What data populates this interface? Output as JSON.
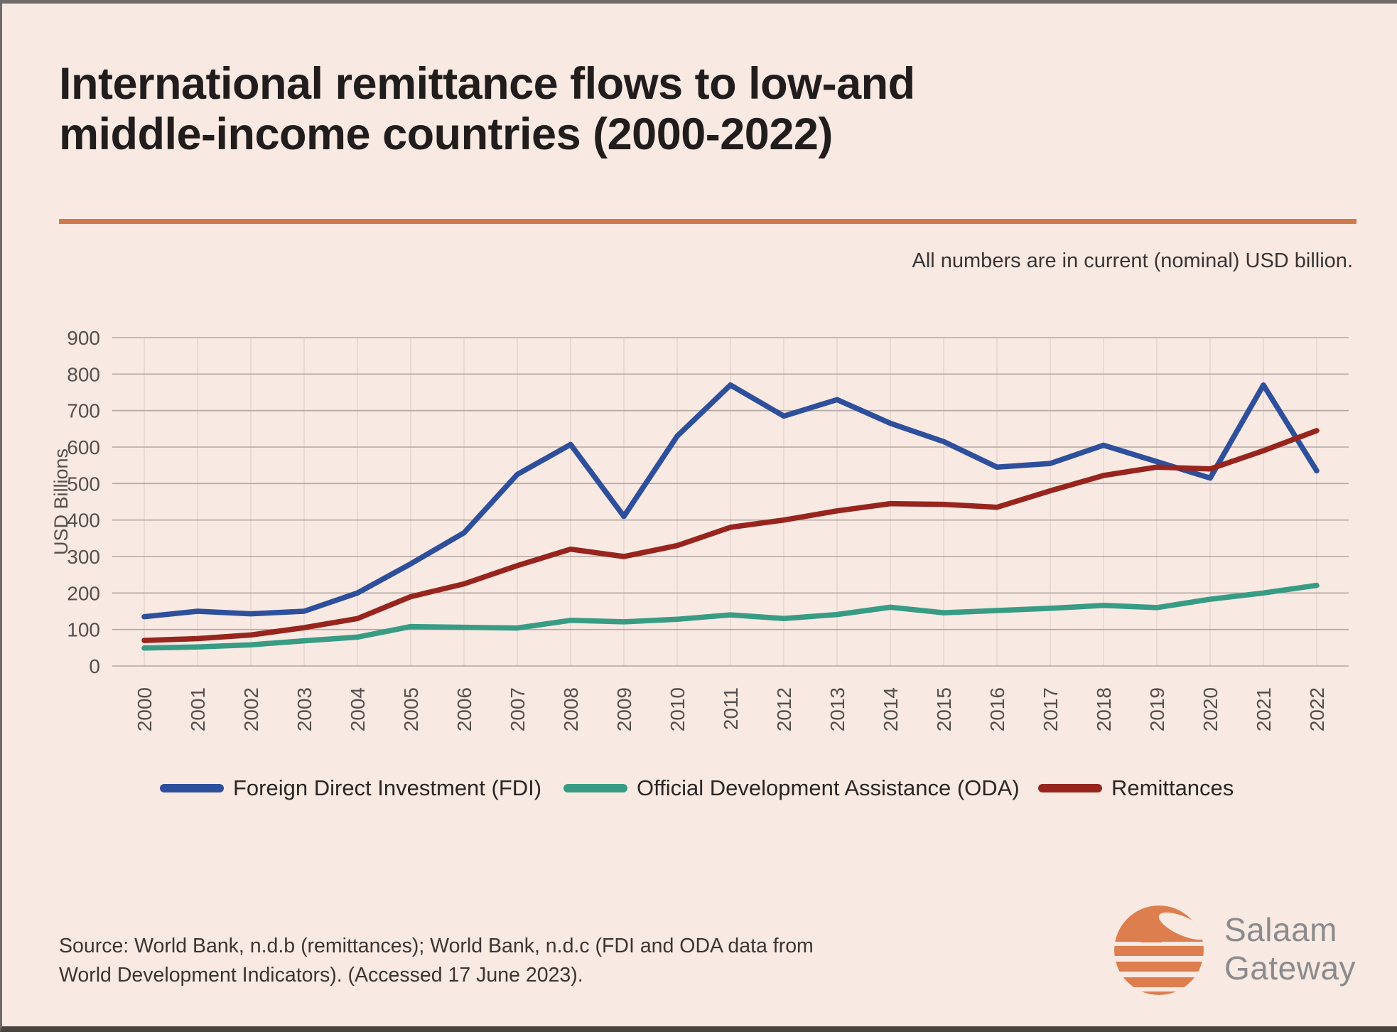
{
  "title": {
    "line1": "International remittance flows to low-and",
    "line2": "middle-income countries (2000-2022)"
  },
  "note": "All numbers are in current (nominal) USD billion.",
  "chart_data": {
    "type": "line",
    "x": [
      "2000",
      "2001",
      "2002",
      "2003",
      "2004",
      "2005",
      "2006",
      "2007",
      "2008",
      "2009",
      "2010",
      "2011",
      "2012",
      "2013",
      "2014",
      "2015",
      "2016",
      "2017",
      "2018",
      "2019",
      "2020",
      "2021",
      "2022"
    ],
    "xlabel": "",
    "ylabel": "USD Billions",
    "ylim": [
      0,
      900
    ],
    "ytick_step": 100,
    "grid": "horizontal major gridlines with faint vertical year lines",
    "legend_position": "bottom",
    "series": [
      {
        "name": "Foreign Direct Investment (FDI)",
        "color": "#2d4f9c",
        "values": [
          135,
          150,
          143,
          150,
          200,
          280,
          365,
          525,
          607,
          410,
          630,
          770,
          685,
          730,
          665,
          615,
          545,
          555,
          605,
          560,
          515,
          770,
          535
        ]
      },
      {
        "name": "Official Development Assistance (ODA)",
        "color": "#389c85",
        "values": [
          49,
          52,
          58,
          69,
          79,
          108,
          106,
          104,
          125,
          121,
          128,
          140,
          130,
          141,
          161,
          146,
          152,
          158,
          166,
          160,
          183,
          200,
          221
        ]
      },
      {
        "name": "Remittances",
        "color": "#97251e",
        "values": [
          70,
          75,
          85,
          105,
          130,
          190,
          225,
          275,
          320,
          300,
          330,
          380,
          400,
          425,
          445,
          443,
          435,
          480,
          522,
          545,
          540,
          590,
          645
        ]
      }
    ]
  },
  "source": {
    "line1": "Source: World Bank, n.d.b (remittances); World Bank, n.d.c (FDI and ODA data from",
    "line2": "World Development Indicators). (Accessed 17 June 2023)."
  },
  "logo": {
    "name": "Salaam Gateway",
    "line1": "Salaam",
    "line2": "Gateway",
    "icon": "salaam-gateway-globe",
    "brand_orange": "#dd7e4e"
  },
  "colors": {
    "background": "#f9e9e3",
    "divider_orange": "#cd7a4c",
    "gridline": "#b3a7a2",
    "vertical_gridline": "#e6d5cf",
    "axis_text": "#55504e",
    "title_text": "#211d1c",
    "frame_top": "#6f6b68",
    "frame_bottom": "#4a4440"
  }
}
